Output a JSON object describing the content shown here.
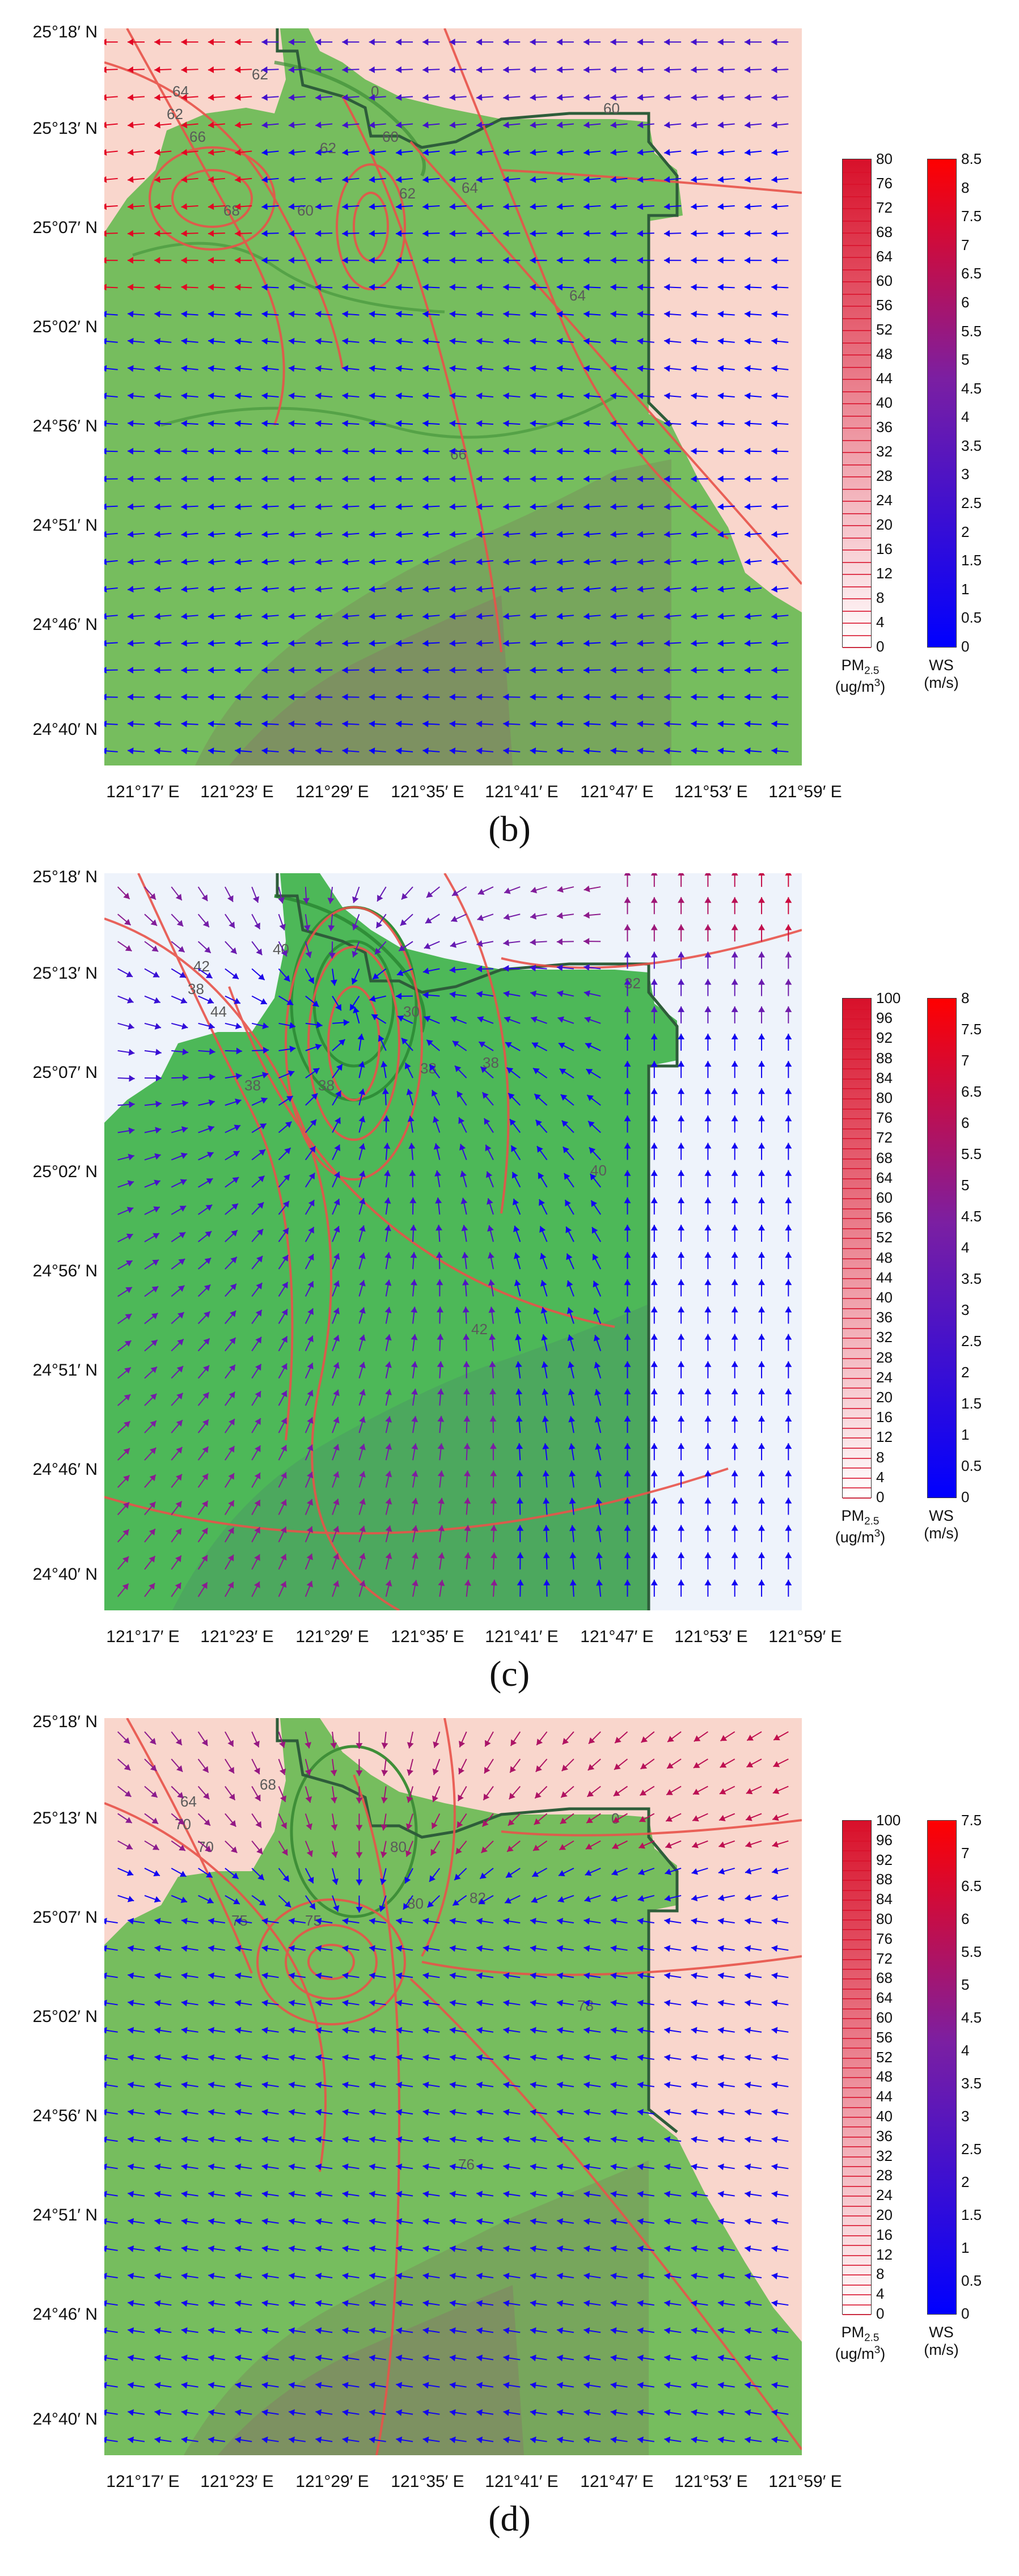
{
  "y_labels": [
    "25°18′ N",
    "25°13′ N",
    "25°07′ N",
    "25°02′ N",
    "24°56′ N",
    "24°51′ N",
    "24°46′ N",
    "24°40′ N"
  ],
  "x_labels": [
    "121°17′ E",
    "121°23′ E",
    "121°29′ E",
    "121°35′ E",
    "121°41′ E",
    "121°47′ E",
    "121°53′ E",
    "121°59′ E"
  ],
  "pm_title": "PM",
  "pm_sub": "2.5",
  "pm_unit_a": "(ug/m",
  "pm_unit_sup": "3",
  "pm_unit_b": ")",
  "ws_title": "WS",
  "ws_unit": "(m/s)",
  "colors": {
    "pm_top": "#d8102a",
    "pm_bottom": "#ffffff",
    "ws_top": "#ff0000",
    "ws_mid": "#7b1fa2",
    "ws_bottom": "#0000ff",
    "terrain": "#5fb84a",
    "contour": "#e8534a",
    "boundary": "#2e5d3a"
  },
  "panels": [
    {
      "caption": "(b)",
      "background": "#f9d6cc",
      "pm_ticks": [
        "80",
        "76",
        "72",
        "68",
        "64",
        "60",
        "56",
        "52",
        "48",
        "44",
        "40",
        "36",
        "32",
        "28",
        "24",
        "20",
        "16",
        "12",
        "8",
        "4",
        "0"
      ],
      "ws_ticks": [
        "8.5",
        "8",
        "7.5",
        "7",
        "6.5",
        "6",
        "5.5",
        "5",
        "4.5",
        "4",
        "3.5",
        "3",
        "2.5",
        "2",
        "1.5",
        "1",
        "0.5",
        "0"
      ],
      "contour_labels": [
        "62",
        "62",
        "64",
        "66",
        "68",
        "60",
        "60",
        "62",
        "64",
        "64",
        "66",
        "60",
        "62",
        "0"
      ]
    },
    {
      "caption": "(c)",
      "background": "#eef3fb",
      "pm_ticks": [
        "100",
        "96",
        "92",
        "88",
        "84",
        "80",
        "76",
        "72",
        "68",
        "64",
        "60",
        "56",
        "52",
        "48",
        "44",
        "40",
        "36",
        "32",
        "28",
        "24",
        "20",
        "16",
        "12",
        "8",
        "4",
        "0"
      ],
      "ws_ticks": [
        "8",
        "7.5",
        "7",
        "6.5",
        "6",
        "5.5",
        "5",
        "4.5",
        "4",
        "3.5",
        "3",
        "2.5",
        "2",
        "1.5",
        "1",
        "0.5",
        "0"
      ],
      "contour_labels": [
        "38",
        "40",
        "42",
        "44",
        "38",
        "38",
        "30",
        "38",
        "38",
        "40",
        "42",
        "32"
      ]
    },
    {
      "caption": "(d)",
      "background": "#f9d6cc",
      "pm_ticks": [
        "100",
        "96",
        "92",
        "88",
        "84",
        "80",
        "76",
        "72",
        "68",
        "64",
        "60",
        "56",
        "52",
        "48",
        "44",
        "40",
        "36",
        "32",
        "28",
        "24",
        "20",
        "16",
        "12",
        "8",
        "4",
        "0"
      ],
      "ws_ticks": [
        "7.5",
        "7",
        "6.5",
        "6",
        "5.5",
        "5",
        "4.5",
        "4",
        "3.5",
        "3",
        "2.5",
        "2",
        "1.5",
        "1",
        "0.5",
        "0"
      ],
      "contour_labels": [
        "70",
        "68",
        "64",
        "70",
        "75",
        "75",
        "80",
        "80",
        "82",
        "78",
        "76",
        "0"
      ]
    }
  ]
}
